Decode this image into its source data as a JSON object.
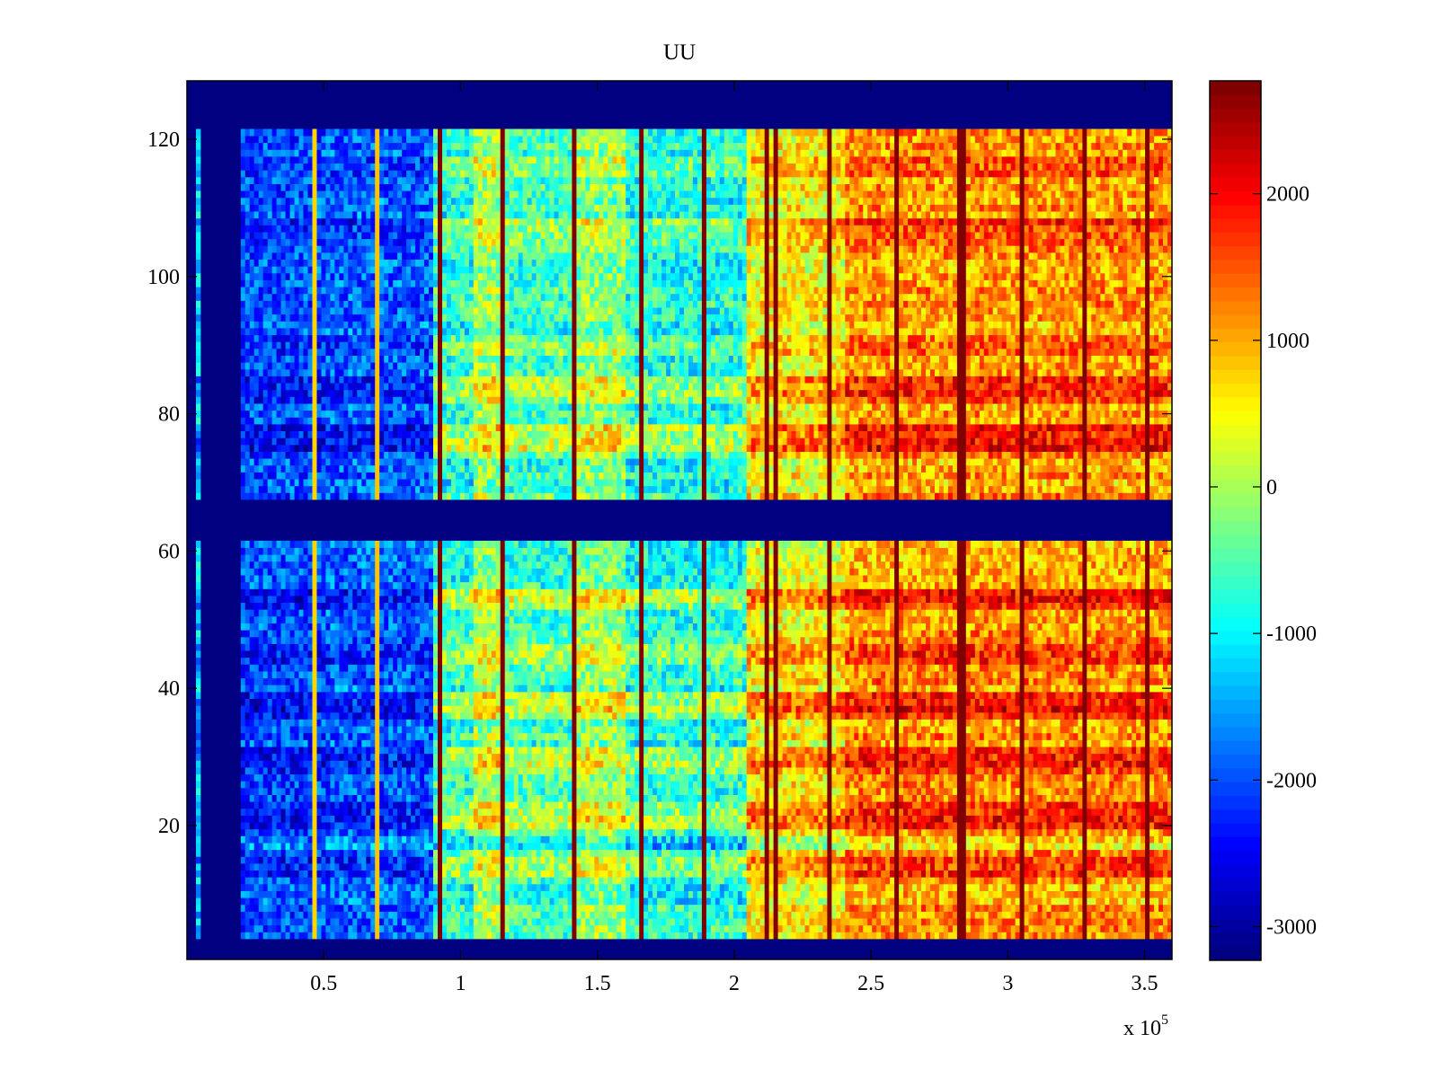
{
  "chart_data": {
    "type": "heatmap",
    "title": "UU",
    "xlabel": "",
    "ylabel": "",
    "x_multiplier_label": "x 10",
    "x_multiplier_exponent": "5",
    "xlim": [
      0,
      3.6
    ],
    "ylim": [
      0.5,
      128.5
    ],
    "clim": [
      -3230,
      2770
    ],
    "colormap": "jet",
    "colormap_levels": 64,
    "x_ticks": [
      0.5,
      1,
      1.5,
      2,
      2.5,
      3,
      3.5
    ],
    "x_tick_labels": [
      "0.5",
      "1",
      "1.5",
      "2",
      "2.5",
      "3",
      "3.5"
    ],
    "y_ticks": [
      20,
      40,
      60,
      80,
      100,
      120
    ],
    "y_tick_labels": [
      "20",
      "40",
      "60",
      "80",
      "100",
      "120"
    ],
    "colorbar_ticks": [
      2000,
      1000,
      0,
      -1000,
      -2000,
      -3000
    ],
    "colorbar_tick_labels": [
      "2000",
      "1000",
      "0",
      "-1000",
      "-2000",
      "-3000"
    ],
    "nan_rows": [
      [
        1,
        3
      ],
      [
        62,
        67
      ],
      [
        122,
        128
      ]
    ],
    "nan_columns": [
      [
        0,
        0.03
      ],
      [
        0.05,
        0.2
      ]
    ],
    "column_profile": [
      {
        "x": [
          0.03,
          0.05
        ],
        "mean": -1300
      },
      {
        "x": [
          0.2,
          0.5
        ],
        "mean": -2000
      },
      {
        "x": [
          0.5,
          0.9
        ],
        "mean": -1900
      },
      {
        "x": [
          0.9,
          1.05
        ],
        "mean": -800
      },
      {
        "x": [
          1.05,
          1.16
        ],
        "mean": -50
      },
      {
        "x": [
          1.16,
          1.4
        ],
        "mean": -650
      },
      {
        "x": [
          1.4,
          1.6
        ],
        "mean": -200
      },
      {
        "x": [
          1.6,
          2.04
        ],
        "mean": -850
      },
      {
        "x": [
          2.04,
          2.4
        ],
        "mean": 500
      },
      {
        "x": [
          2.4,
          3.6
        ],
        "mean": 1100
      }
    ],
    "row_stripes": [
      {
        "rows": [
          75,
          78
        ],
        "delta": 900
      },
      {
        "rows": [
          82,
          85
        ],
        "delta": 700
      },
      {
        "rows": [
          89,
          91
        ],
        "delta": 500
      },
      {
        "rows": [
          105,
          108
        ],
        "delta": 600
      },
      {
        "rows": [
          115,
          117
        ],
        "delta": 300
      },
      {
        "rows": [
          36,
          39
        ],
        "delta": 900
      },
      {
        "rows": [
          28,
          31
        ],
        "delta": 700
      },
      {
        "rows": [
          20,
          23
        ],
        "delta": 900
      },
      {
        "rows": [
          44,
          46
        ],
        "delta": 700
      },
      {
        "rows": [
          52,
          54
        ],
        "delta": 700
      },
      {
        "rows": [
          13,
          15
        ],
        "delta": 600
      },
      {
        "rows": [
          17,
          18
        ],
        "delta": -600
      }
    ],
    "spike_columns": [
      0.46,
      0.69,
      0.93,
      1.15,
      1.41,
      1.66,
      1.89,
      2.12,
      2.15,
      2.35,
      2.6,
      2.83,
      3.05,
      3.28,
      3.51
    ],
    "noise_amplitude": 650
  }
}
